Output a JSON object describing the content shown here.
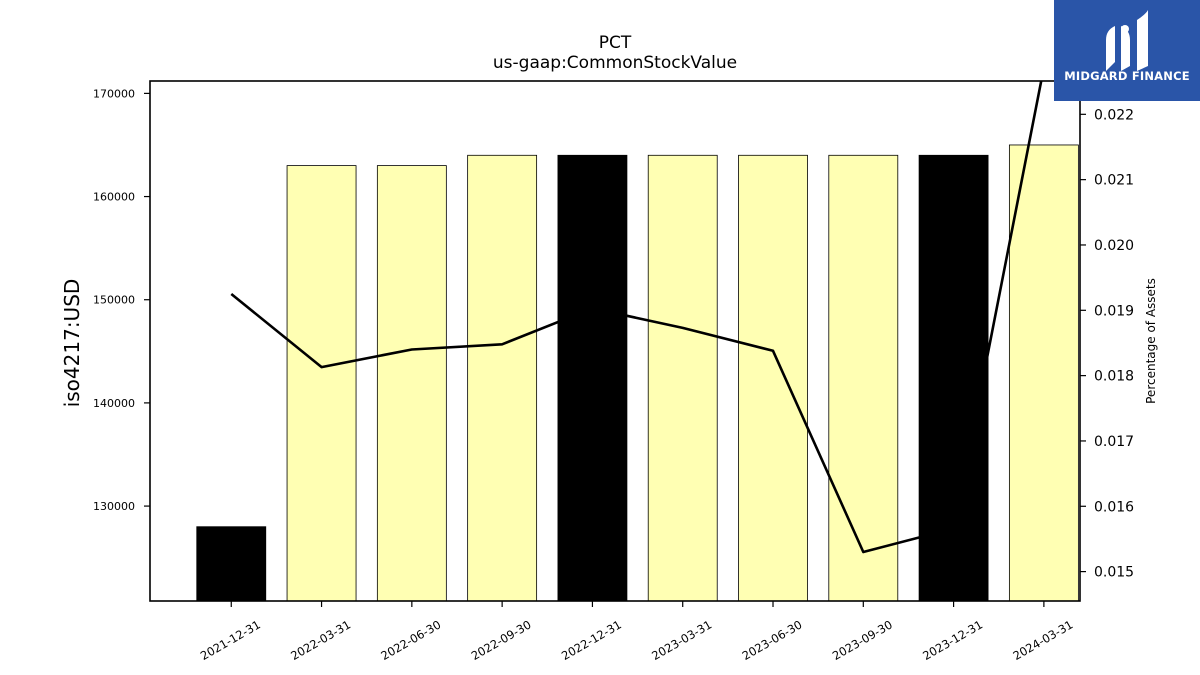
{
  "logo": {
    "text": "MIDGARD FINANCE",
    "icon": "midgard-logo-icon",
    "background": "#2a55a8"
  },
  "chart_data": {
    "type": "bar",
    "title": "PCT",
    "subtitle": "us-gaap:CommonStockValue",
    "ylabel": "iso4217:USD",
    "y2label": "Percentage of Assets",
    "categories": [
      "2021-12-31",
      "2022-03-31",
      "2022-06-30",
      "2022-09-30",
      "2022-12-31",
      "2023-03-31",
      "2023-06-30",
      "2023-09-30",
      "2023-12-31",
      "2024-03-31"
    ],
    "series": [
      {
        "type": "bar",
        "values": [
          128000,
          163000,
          163000,
          164000,
          164000,
          164000,
          164000,
          164000,
          164000,
          165000
        ],
        "colors": [
          "#000000",
          "#ffffb3",
          "#ffffb3",
          "#ffffb3",
          "#000000",
          "#ffffb3",
          "#ffffb3",
          "#ffffb3",
          "#000000",
          "#ffffb3"
        ]
      },
      {
        "type": "line",
        "axis": "right",
        "values": [
          0.01925,
          0.01813,
          0.0184,
          0.01848,
          0.01903,
          0.01873,
          0.01838,
          0.0153,
          0.01566,
          0.02272
        ],
        "color": "#000000"
      }
    ],
    "ylim": [
      120800,
      171200
    ],
    "y2lim": [
      0.01455,
      0.02251
    ],
    "yticks": [
      130000,
      140000,
      150000,
      160000,
      170000
    ],
    "y2ticks": [
      0.015,
      0.016,
      0.017,
      0.018,
      0.019,
      0.02,
      0.021,
      0.022
    ],
    "grid": false
  }
}
